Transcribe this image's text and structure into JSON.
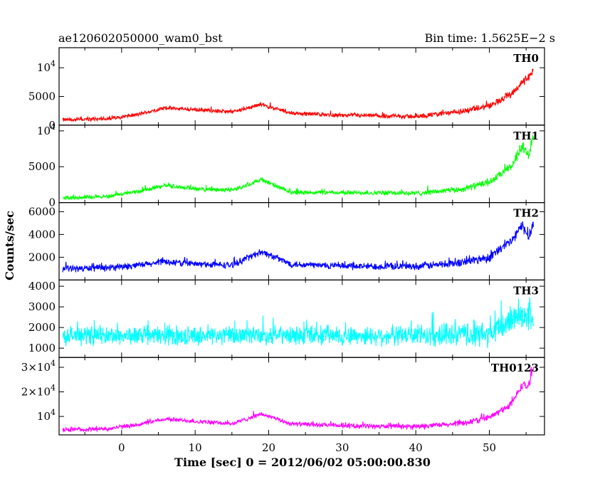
{
  "chart_data": {
    "type": "line",
    "title_left": "ae120602050000_wam0_bst",
    "title_right": "Bin time: 1.5625E−2 s",
    "xlabel": "Time [sec] 0 = 2012/06/02 05:00:00.830",
    "ylabel": "Counts/sec",
    "xlim": [
      -8.5,
      57.5
    ],
    "x_ticks": [
      0,
      10,
      20,
      30,
      40,
      50
    ],
    "x_tick_labels": [
      "0",
      "10",
      "20",
      "30",
      "40",
      "50"
    ],
    "grid": false,
    "legend": "none",
    "x_start": -8.0,
    "x_end": 56.0,
    "panels": [
      {
        "name": "TH0",
        "color": "#ff0000",
        "ylim": [
          0,
          13500
        ],
        "y_ticks": [
          0,
          5000,
          10000
        ],
        "y_tick_labels": [
          {
            "base": "0"
          },
          {
            "base": "5000"
          },
          {
            "base": "10",
            "exp": "4"
          }
        ],
        "profile": [
          {
            "x": -8,
            "y": 900
          },
          {
            "x": -2,
            "y": 1100
          },
          {
            "x": 2,
            "y": 1800
          },
          {
            "x": 6,
            "y": 3000
          },
          {
            "x": 10,
            "y": 2700
          },
          {
            "x": 15,
            "y": 2300
          },
          {
            "x": 19,
            "y": 3600
          },
          {
            "x": 23,
            "y": 2100
          },
          {
            "x": 30,
            "y": 1700
          },
          {
            "x": 40,
            "y": 1500
          },
          {
            "x": 46,
            "y": 2300
          },
          {
            "x": 50,
            "y": 3300
          },
          {
            "x": 53,
            "y": 5500
          },
          {
            "x": 54.5,
            "y": 7500
          },
          {
            "x": 55.3,
            "y": 8200
          },
          {
            "x": 56,
            "y": 9500
          }
        ],
        "noise": [
          600,
          1200
        ]
      },
      {
        "name": "TH1",
        "color": "#00ff00",
        "ylim": [
          0,
          10800
        ],
        "y_ticks": [
          0,
          5000,
          10000
        ],
        "y_tick_labels": [
          {
            "base": "0"
          },
          {
            "base": "5000"
          },
          {
            "base": "10",
            "exp": "4"
          }
        ],
        "profile": [
          {
            "x": -8,
            "y": 650
          },
          {
            "x": -2,
            "y": 850
          },
          {
            "x": 2,
            "y": 1500
          },
          {
            "x": 6,
            "y": 2400
          },
          {
            "x": 10,
            "y": 1900
          },
          {
            "x": 15,
            "y": 1700
          },
          {
            "x": 19,
            "y": 3200
          },
          {
            "x": 23,
            "y": 1400
          },
          {
            "x": 30,
            "y": 1400
          },
          {
            "x": 40,
            "y": 1300
          },
          {
            "x": 46,
            "y": 1800
          },
          {
            "x": 50,
            "y": 2800
          },
          {
            "x": 53,
            "y": 5000
          },
          {
            "x": 54.5,
            "y": 7800
          },
          {
            "x": 55.3,
            "y": 6500
          },
          {
            "x": 56,
            "y": 9500
          }
        ],
        "noise": [
          500,
          1100
        ]
      },
      {
        "name": "TH2",
        "color": "#0000ff",
        "ylim": [
          0,
          6800
        ],
        "y_ticks": [
          2000,
          4000,
          6000
        ],
        "y_tick_labels": [
          {
            "base": "2000"
          },
          {
            "base": "4000"
          },
          {
            "base": "6000"
          }
        ],
        "profile": [
          {
            "x": -8,
            "y": 1000
          },
          {
            "x": -2,
            "y": 1050
          },
          {
            "x": 2,
            "y": 1250
          },
          {
            "x": 6,
            "y": 1600
          },
          {
            "x": 10,
            "y": 1400
          },
          {
            "x": 15,
            "y": 1300
          },
          {
            "x": 19,
            "y": 2500
          },
          {
            "x": 23,
            "y": 1400
          },
          {
            "x": 30,
            "y": 1200
          },
          {
            "x": 40,
            "y": 1200
          },
          {
            "x": 46,
            "y": 1500
          },
          {
            "x": 50,
            "y": 2000
          },
          {
            "x": 53,
            "y": 3400
          },
          {
            "x": 54.5,
            "y": 4800
          },
          {
            "x": 55.3,
            "y": 3800
          },
          {
            "x": 56,
            "y": 5000
          }
        ],
        "noise": [
          500,
          900
        ]
      },
      {
        "name": "TH3",
        "color": "#00ffff",
        "ylim": [
          550,
          4300
        ],
        "y_ticks": [
          1000,
          2000,
          3000,
          4000
        ],
        "y_tick_labels": [
          {
            "base": "1000"
          },
          {
            "base": "2000"
          },
          {
            "base": "3000"
          },
          {
            "base": "4000"
          }
        ],
        "profile": [
          {
            "x": -8,
            "y": 1600
          },
          {
            "x": 10,
            "y": 1600
          },
          {
            "x": 20,
            "y": 1620
          },
          {
            "x": 30,
            "y": 1600
          },
          {
            "x": 45,
            "y": 1620
          },
          {
            "x": 50,
            "y": 1650
          },
          {
            "x": 52,
            "y": 2100
          },
          {
            "x": 54,
            "y": 2700
          },
          {
            "x": 56,
            "y": 2500
          }
        ],
        "noise": [
          750,
          1400
        ]
      },
      {
        "name": "TH0123",
        "color": "#ff00ff",
        "ylim": [
          2500,
          34000
        ],
        "y_ticks": [
          10000,
          20000,
          30000
        ],
        "y_tick_labels": [
          {
            "base": "10",
            "exp": "4"
          },
          {
            "base": "2×10",
            "exp": "4"
          },
          {
            "base": "3×10",
            "exp": "4"
          }
        ],
        "profile": [
          {
            "x": -8,
            "y": 4500
          },
          {
            "x": -2,
            "y": 5000
          },
          {
            "x": 2,
            "y": 6500
          },
          {
            "x": 6,
            "y": 9000
          },
          {
            "x": 10,
            "y": 8000
          },
          {
            "x": 15,
            "y": 7000
          },
          {
            "x": 19,
            "y": 11000
          },
          {
            "x": 23,
            "y": 7000
          },
          {
            "x": 30,
            "y": 6200
          },
          {
            "x": 40,
            "y": 5800
          },
          {
            "x": 46,
            "y": 7000
          },
          {
            "x": 50,
            "y": 9500
          },
          {
            "x": 53,
            "y": 15000
          },
          {
            "x": 54.5,
            "y": 23000
          },
          {
            "x": 55.3,
            "y": 22000
          },
          {
            "x": 56,
            "y": 30000
          }
        ],
        "noise": [
          1500,
          3000
        ]
      }
    ]
  }
}
